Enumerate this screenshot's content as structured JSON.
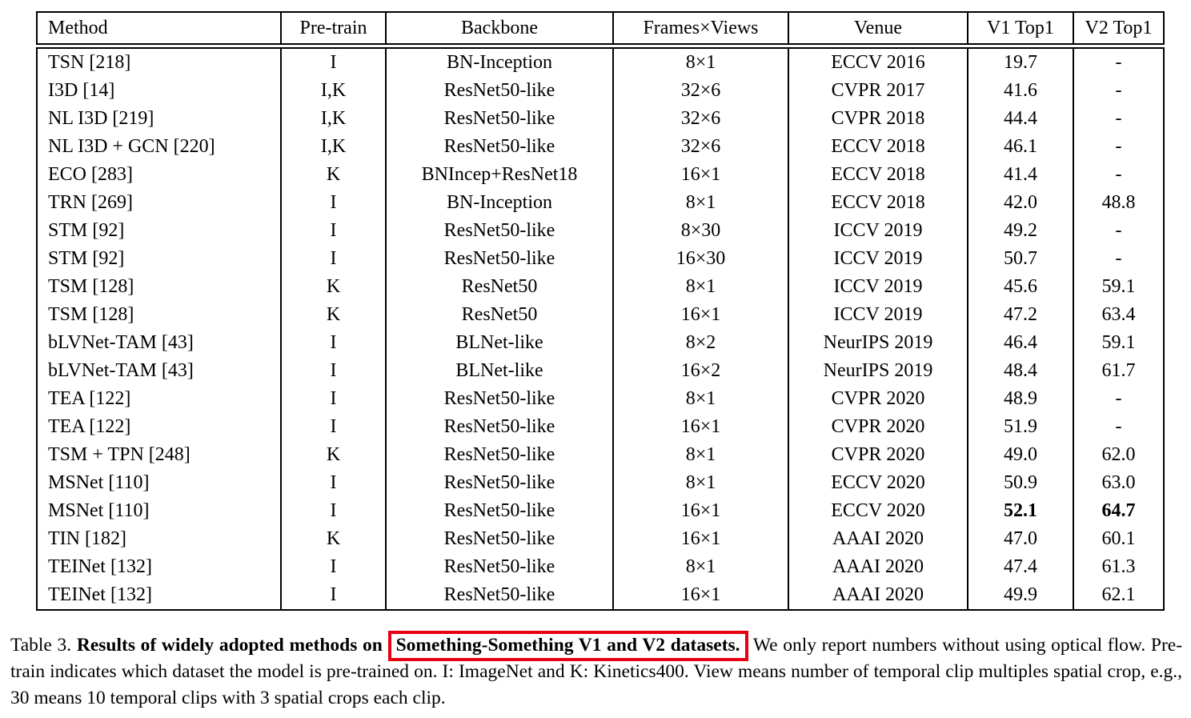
{
  "colors": {
    "highlight_box": "#e60012",
    "text": "#000000",
    "background": "#ffffff"
  },
  "table": {
    "headers": [
      "Method",
      "Pre-train",
      "Backbone",
      "Frames×Views",
      "Venue",
      "V1 Top1",
      "V2 Top1"
    ],
    "rows": [
      {
        "cells": [
          "TSN [218]",
          "I",
          "BN-Inception",
          "8×1",
          "ECCV 2016",
          "19.7",
          "-"
        ]
      },
      {
        "cells": [
          "I3D [14]",
          "I,K",
          "ResNet50-like",
          "32×6",
          "CVPR 2017",
          "41.6",
          "-"
        ]
      },
      {
        "cells": [
          "NL I3D [219]",
          "I,K",
          "ResNet50-like",
          "32×6",
          "CVPR 2018",
          "44.4",
          "-"
        ]
      },
      {
        "cells": [
          "NL I3D + GCN [220]",
          "I,K",
          "ResNet50-like",
          "32×6",
          "ECCV 2018",
          "46.1",
          "-"
        ]
      },
      {
        "cells": [
          "ECO [283]",
          "K",
          "BNIncep+ResNet18",
          "16×1",
          "ECCV 2018",
          "41.4",
          "-"
        ]
      },
      {
        "cells": [
          "TRN [269]",
          "I",
          "BN-Inception",
          "8×1",
          "ECCV 2018",
          "42.0",
          "48.8"
        ]
      },
      {
        "cells": [
          "STM [92]",
          "I",
          "ResNet50-like",
          "8×30",
          "ICCV 2019",
          "49.2",
          "-"
        ]
      },
      {
        "cells": [
          "STM [92]",
          "I",
          "ResNet50-like",
          "16×30",
          "ICCV 2019",
          "50.7",
          "-"
        ]
      },
      {
        "cells": [
          "TSM [128]",
          "K",
          "ResNet50",
          "8×1",
          "ICCV 2019",
          "45.6",
          "59.1"
        ]
      },
      {
        "cells": [
          "TSM [128]",
          "K",
          "ResNet50",
          "16×1",
          "ICCV 2019",
          "47.2",
          "63.4"
        ]
      },
      {
        "cells": [
          "bLVNet-TAM [43]",
          "I",
          "BLNet-like",
          "8×2",
          "NeurIPS 2019",
          "46.4",
          "59.1"
        ]
      },
      {
        "cells": [
          "bLVNet-TAM [43]",
          "I",
          "BLNet-like",
          "16×2",
          "NeurIPS 2019",
          "48.4",
          "61.7"
        ]
      },
      {
        "cells": [
          "TEA [122]",
          "I",
          "ResNet50-like",
          "8×1",
          "CVPR 2020",
          "48.9",
          "-"
        ]
      },
      {
        "cells": [
          "TEA [122]",
          "I",
          "ResNet50-like",
          "16×1",
          "CVPR 2020",
          "51.9",
          "-"
        ]
      },
      {
        "cells": [
          "TSM + TPN [248]",
          "K",
          "ResNet50-like",
          "8×1",
          "CVPR 2020",
          "49.0",
          "62.0"
        ]
      },
      {
        "cells": [
          "MSNet [110]",
          "I",
          "ResNet50-like",
          "8×1",
          "ECCV 2020",
          "50.9",
          "63.0"
        ]
      },
      {
        "cells": [
          "MSNet [110]",
          "I",
          "ResNet50-like",
          "16×1",
          "ECCV 2020",
          "52.1",
          "64.7"
        ],
        "bold_cells": [
          5,
          6
        ]
      },
      {
        "cells": [
          "TIN [182]",
          "K",
          "ResNet50-like",
          "16×1",
          "AAAI 2020",
          "47.0",
          "60.1"
        ]
      },
      {
        "cells": [
          "TEINet [132]",
          "I",
          "ResNet50-like",
          "8×1",
          "AAAI 2020",
          "47.4",
          "61.3"
        ]
      },
      {
        "cells": [
          "TEINet [132]",
          "I",
          "ResNet50-like",
          "16×1",
          "AAAI 2020",
          "49.9",
          "62.1"
        ]
      }
    ]
  },
  "caption": {
    "prefix": "Table 3.",
    "bold_lead": "Results of widely adopted methods on",
    "highlighted": "Something-Something V1 and V2 datasets.",
    "rest": "We only report numbers without using optical flow. Pre-train indicates which dataset the model is pre-trained on. I: ImageNet and K: Kinetics400. View means number of temporal clip multiples spatial crop, e.g., 30 means 10 temporal clips with 3 spatial crops each clip."
  }
}
